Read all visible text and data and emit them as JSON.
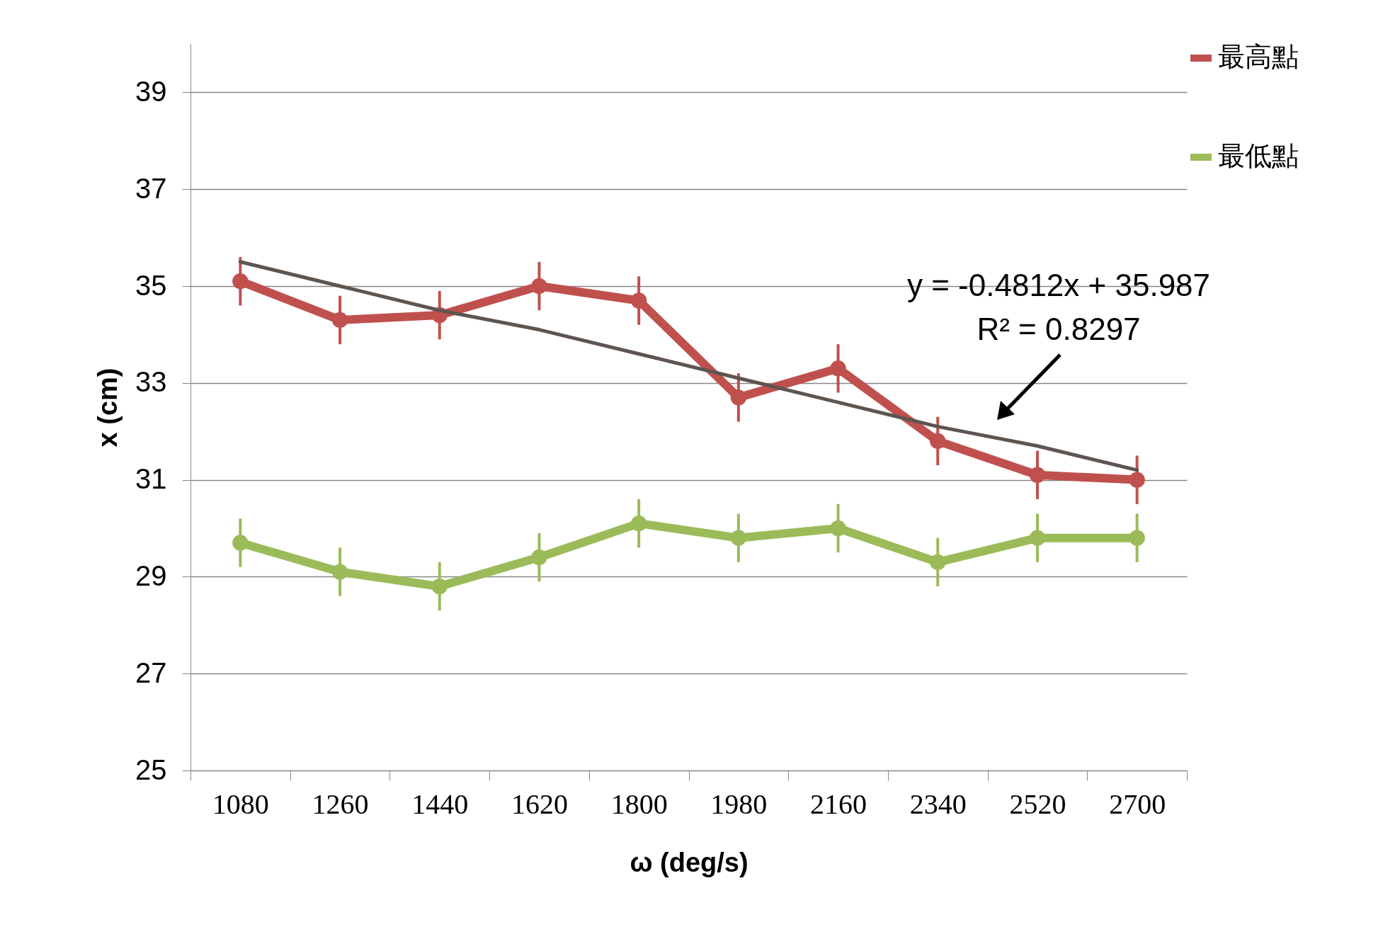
{
  "chart_data": {
    "type": "line",
    "xlabel": "ω (deg/s)",
    "ylabel": "x (cm)",
    "categories": [
      "1080",
      "1260",
      "1440",
      "1620",
      "1800",
      "1980",
      "2160",
      "2340",
      "2520",
      "2700"
    ],
    "series": [
      {
        "name": "最高點",
        "color": "#c0504d",
        "values": [
          35.1,
          34.3,
          34.4,
          35.0,
          34.7,
          32.7,
          33.3,
          31.8,
          31.1,
          31.0
        ],
        "errors": [
          0.5,
          0.5,
          0.5,
          0.5,
          0.5,
          0.5,
          0.5,
          0.5,
          0.5,
          0.5
        ]
      },
      {
        "name": "最低點",
        "color": "#9bbb59",
        "values": [
          29.7,
          29.1,
          28.8,
          29.4,
          30.1,
          29.8,
          30.0,
          29.3,
          29.8,
          29.8
        ],
        "errors": [
          0.5,
          0.5,
          0.5,
          0.5,
          0.5,
          0.5,
          0.5,
          0.5,
          0.5,
          0.5
        ]
      },
      {
        "type": "line",
        "color": "#5f5550",
        "values": [
          35.5,
          35.0,
          34.5,
          34.1,
          33.6,
          33.1,
          32.6,
          32.1,
          31.7,
          31.2
        ],
        "marker": "none"
      }
    ],
    "ylim": [
      25,
      40
    ],
    "yticks": [
      25,
      27,
      29,
      31,
      33,
      35,
      37,
      39
    ],
    "grid": "y",
    "legend": "right",
    "marker": "circle",
    "line_style": "solid",
    "annotations": [
      "y = -0.4812x + 35.987",
      "R² = 0.8297"
    ]
  }
}
